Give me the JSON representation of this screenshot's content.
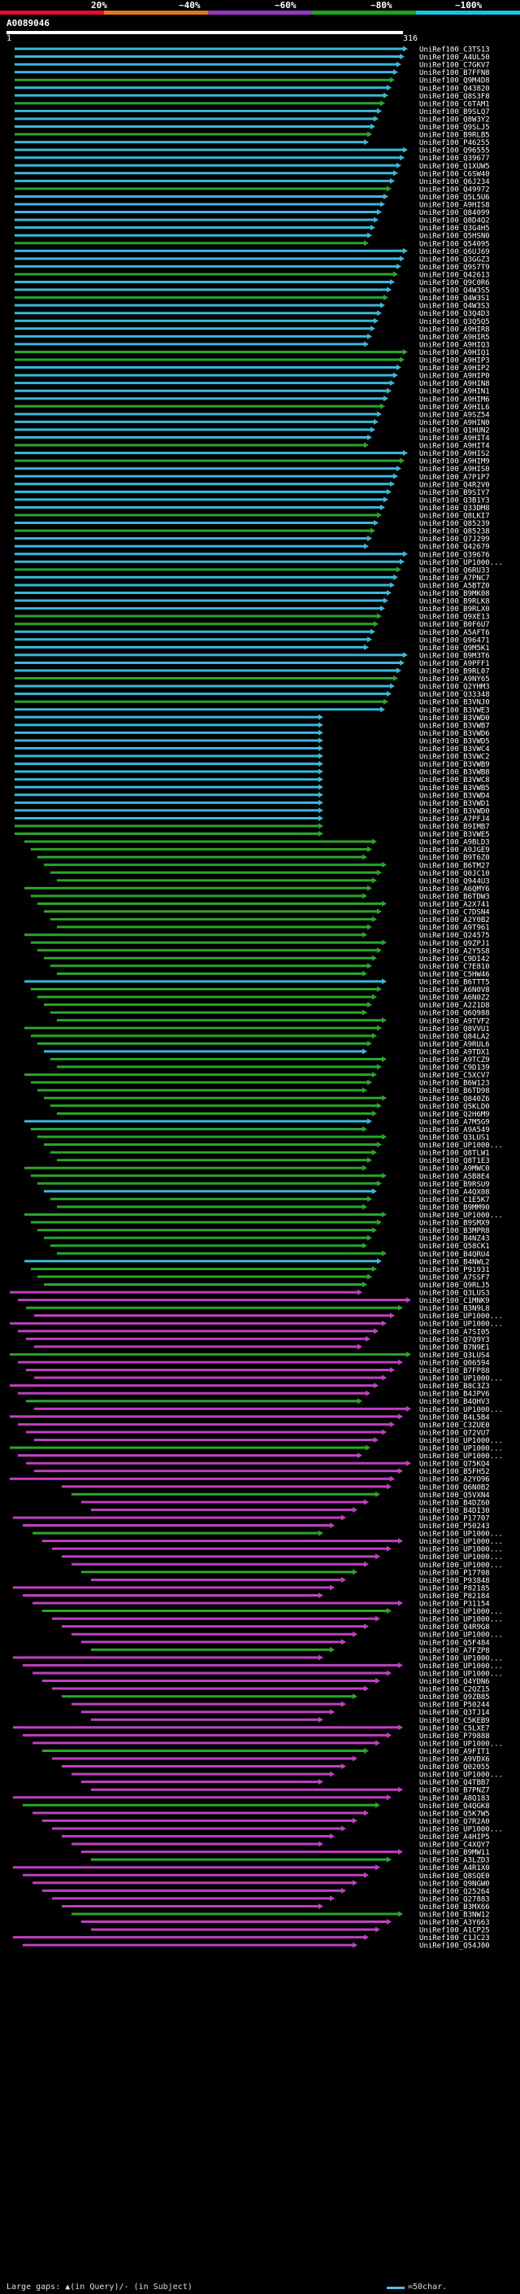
{
  "scale": {
    "labels": [
      "20%",
      "~40%",
      "~60%",
      "~80%",
      "~100%"
    ],
    "colors": [
      "#e0102a",
      "#e07a10",
      "#9a36c8",
      "#1aa41a",
      "#20c0e0"
    ]
  },
  "query": {
    "name": "A0089046",
    "start": "1",
    "end": "316"
  },
  "colors": {
    "cyan": "#3ab8d8",
    "green": "#2aa62a",
    "magenta": "#c040c0",
    "gap": "#000000"
  },
  "hits": [
    "UniRef100_C3TS13",
    "UniRef100_A4UL50",
    "UniRef100_C7GKV7",
    "UniRef100_B7FFN8",
    "UniRef100_Q9M4D8",
    "UniRef100_Q43820",
    "UniRef100_Q8S3F8",
    "UniRef100_C6TAM1",
    "UniRef100_B9SLQ7",
    "UniRef100_Q8W3Y2",
    "UniRef100_Q9SLJ5",
    "UniRef100_B9RLB5",
    "UniRef100_P46255",
    "UniRef100_Q96555",
    "UniRef100_Q39677",
    "UniRef100_Q1XUW5",
    "UniRef100_C6SW40",
    "UniRef100_Q6J234",
    "UniRef100_Q49972",
    "UniRef100_Q5L5U6",
    "UniRef100_A9HIS8",
    "UniRef100_Q84099",
    "UniRef100_Q8D4Q2",
    "UniRef100_Q3G4H5",
    "UniRef100_Q5HSN0",
    "UniRef100_Q54095",
    "UniRef100_Q6UJ69",
    "UniRef100_Q3GGZ3",
    "UniRef100_Q9S7T9",
    "UniRef100_Q42613",
    "UniRef100_Q9C0R6",
    "UniRef100_Q4W3S5",
    "UniRef100_Q4W3S1",
    "UniRef100_Q4W3S3",
    "UniRef100_Q3Q4D3",
    "UniRef100_Q3Q5Q5",
    "UniRef100_A9HIR8",
    "UniRef100_A9HIR5",
    "UniRef100_A9HIQ3",
    "UniRef100_A9HIQ1",
    "UniRef100_A9HIP3",
    "UniRef100_A9HIP2",
    "UniRef100_A9HIP0",
    "UniRef100_A9HIN8",
    "UniRef100_A9HIN1",
    "UniRef100_A9HIM6",
    "UniRef100_A9HIL6",
    "UniRef100_A9SZ54",
    "UniRef100_A9HIN0",
    "UniRef100_Q1HUN2",
    "UniRef100_A9HIT4",
    "UniRef100_A9HIT4",
    "UniRef100_A9HIS2",
    "UniRef100_A9HIM9",
    "UniRef100_A9HIS0",
    "UniRef100_A7P1P7",
    "UniRef100_Q4R2V0",
    "UniRef100_B9SIY7",
    "UniRef100_Q3B1Y3",
    "UniRef100_Q33DM8",
    "UniRef100_Q8LKI7",
    "UniRef100_Q85239",
    "UniRef100_Q85238",
    "UniRef100_Q7J299",
    "UniRef100_Q42679",
    "UniRef100_Q39676",
    "UniRef100_UP1000...",
    "UniRef100_Q6RU33",
    "UniRef100_A7PNC7",
    "UniRef100_A5BTZ0",
    "UniRef100_B9MK08",
    "UniRef100_B9RLK8",
    "UniRef100_B9RLX0",
    "UniRef100_Q9XE13",
    "UniRef100_B0F6U7",
    "UniRef100_A5AFT6",
    "UniRef100_Q96471",
    "UniRef100_Q9M5K1",
    "UniRef100_B9M3T6",
    "UniRef100_A9PFF1",
    "UniRef100_B9RL07",
    "UniRef100_A9NY65",
    "UniRef100_Q2YHM3",
    "UniRef100_Q33348",
    "UniRef100_B3VNJ0",
    "UniRef100_B3VWE3",
    "UniRef100_B3VWD0",
    "UniRef100_B3VWB7",
    "UniRef100_B3VWD6",
    "UniRef100_B3VWD5",
    "UniRef100_B3VWC4",
    "UniRef100_B3VWC2",
    "UniRef100_B3VWB9",
    "UniRef100_B3VWB8",
    "UniRef100_B3VWC8",
    "UniRef100_B3VWB5",
    "UniRef100_B3VWD4",
    "UniRef100_B3VWD1",
    "UniRef100_B3VWD0",
    "UniRef100_A7PFJ4",
    "UniRef100_B9IMB7",
    "UniRef100_B3VWE5",
    "UniRef100_A9BLD3",
    "UniRef100_A9JGE9",
    "UniRef100_B9T6Z0",
    "UniRef100_B6TM27",
    "UniRef100_Q0JC10",
    "UniRef100_Q944U3",
    "UniRef100_A6QMY6",
    "UniRef100_B6TDW3",
    "UniRef100_A2X741",
    "UniRef100_C7DSN4",
    "UniRef100_A2Y0B2",
    "UniRef100_A9T961",
    "UniRef100_Q24575",
    "UniRef100_Q9ZPJ1",
    "UniRef100_A2Y5S8",
    "UniRef100_C9DI42",
    "UniRef100_C7E810",
    "UniRef100_C5HW46",
    "UniRef100_B6TTT5",
    "UniRef100_A6N0V8",
    "UniRef100_A6N0Z2",
    "UniRef100_A2Z1D8",
    "UniRef100_Q6Q988",
    "UniRef100_A9TVF2",
    "UniRef100_Q8VVU1",
    "UniRef100_Q84LA2",
    "UniRef100_A9RUL6",
    "UniRef100_A9TDX1",
    "UniRef100_A9TCZ9",
    "UniRef100_C9D139",
    "UniRef100_C5XCV7",
    "UniRef100_B6W123",
    "UniRef100_B6TD98",
    "UniRef100_Q840Z6",
    "UniRef100_Q5KLD0",
    "UniRef100_Q2H6M9",
    "UniRef100_A7M5G9",
    "UniRef100_A9A549",
    "UniRef100_Q3LUS1",
    "UniRef100_UP1000...",
    "UniRef100_Q8TLW1",
    "UniRef100_Q8T1E3",
    "UniRef100_A9MWC0",
    "UniRef100_A5B8E4",
    "UniRef100_B9RSU9",
    "UniRef100_A4QX08",
    "UniRef100_C1E5K7",
    "UniRef100_B9MM90",
    "UniRef100_UP1000...",
    "UniRef100_B9SMX9",
    "UniRef100_B3MPR8",
    "UniRef100_B4NZ43",
    "UniRef100_Q58CK1",
    "UniRef100_B4QRU4",
    "UniRef100_B4NWL2",
    "UniRef100_P91931",
    "UniRef100_A7SSF7",
    "UniRef100_Q9RLJ5",
    "UniRef100_Q3LUS3",
    "UniRef100_C1MNK9",
    "UniRef100_B3N9L8",
    "UniRef100_UP1000...",
    "UniRef100_UP1000...",
    "UniRef100_A7SI05",
    "UniRef100_Q7Q9Y3",
    "UniRef100_B7N9E1",
    "UniRef100_Q3LUS4",
    "UniRef100_Q06594",
    "UniRef100_B7FP88",
    "UniRef100_UP1000...",
    "UniRef100_B8C3Z3",
    "UniRef100_B4JPV6",
    "UniRef100_B4QHV3",
    "UniRef100_UP1000...",
    "UniRef100_B4L5B4",
    "UniRef100_C3ZUE0",
    "UniRef100_Q72VU7",
    "UniRef100_UP1000...",
    "UniRef100_UP1000...",
    "UniRef100_UP1000...",
    "UniRef100_Q75KQ4",
    "UniRef100_B5FH52",
    "UniRef100_A2YO96",
    "UniRef100_Q6N0B2",
    "UniRef100_Q5VXN4",
    "UniRef100_B4DZ60",
    "UniRef100_B4DI30",
    "UniRef100_P17707",
    "UniRef100_P50243",
    "UniRef100_UP1000...",
    "UniRef100_UP1000...",
    "UniRef100_UP1000...",
    "UniRef100_UP1000...",
    "UniRef100_UP1000...",
    "UniRef100_P17708",
    "UniRef100_P93848",
    "UniRef100_P82185",
    "UniRef100_P82184",
    "UniRef100_P31154",
    "UniRef100_UP1000...",
    "UniRef100_UP1000...",
    "UniRef100_Q4R9G8",
    "UniRef100_UP1000...",
    "UniRef100_Q5F484",
    "UniRef100_A7FZP8",
    "UniRef100_UP1000...",
    "UniRef100_UP1000...",
    "UniRef100_UP1000...",
    "UniRef100_Q4YDN6",
    "UniRef100_C2QZ15",
    "UniRef100_Q9ZB85",
    "UniRef100_P50244",
    "UniRef100_Q3TJ14",
    "UniRef100_C5KEB9",
    "UniRef100_C5LXE7",
    "UniRef100_P79888",
    "UniRef100_UP1000...",
    "UniRef100_A9FIT1",
    "UniRef100_A9VDX6",
    "UniRef100_Q02055",
    "UniRef100_UP1000...",
    "UniRef100_Q4TBB7",
    "UniRef100_B7PNZ7",
    "UniRef100_A8Q183",
    "UniRef100_Q4QGK8",
    "UniRef100_Q5K7W5",
    "UniRef100_Q7R2A0",
    "UniRef100_UP1000...",
    "UniRef100_A4HIP5",
    "UniRef100_C4XQY7",
    "UniRef100_B9MW11",
    "UniRef100_A3LZD3",
    "UniRef100_A4R1X0",
    "UniRef100_Q8SQE0",
    "UniRef100_Q9NGW0",
    "UniRef100_Q25264",
    "UniRef100_Q27883",
    "UniRef100_B3MX66",
    "UniRef100_B3NW12",
    "UniRef100_A3Y663",
    "UniRef100_A1CP25",
    "UniRef100_C1JC23",
    "UniRef100_Q54J00"
  ],
  "legend": {
    "text": "Large gaps: ▲(in Query)/- (in Subject)",
    "scale_text": "=50char."
  }
}
